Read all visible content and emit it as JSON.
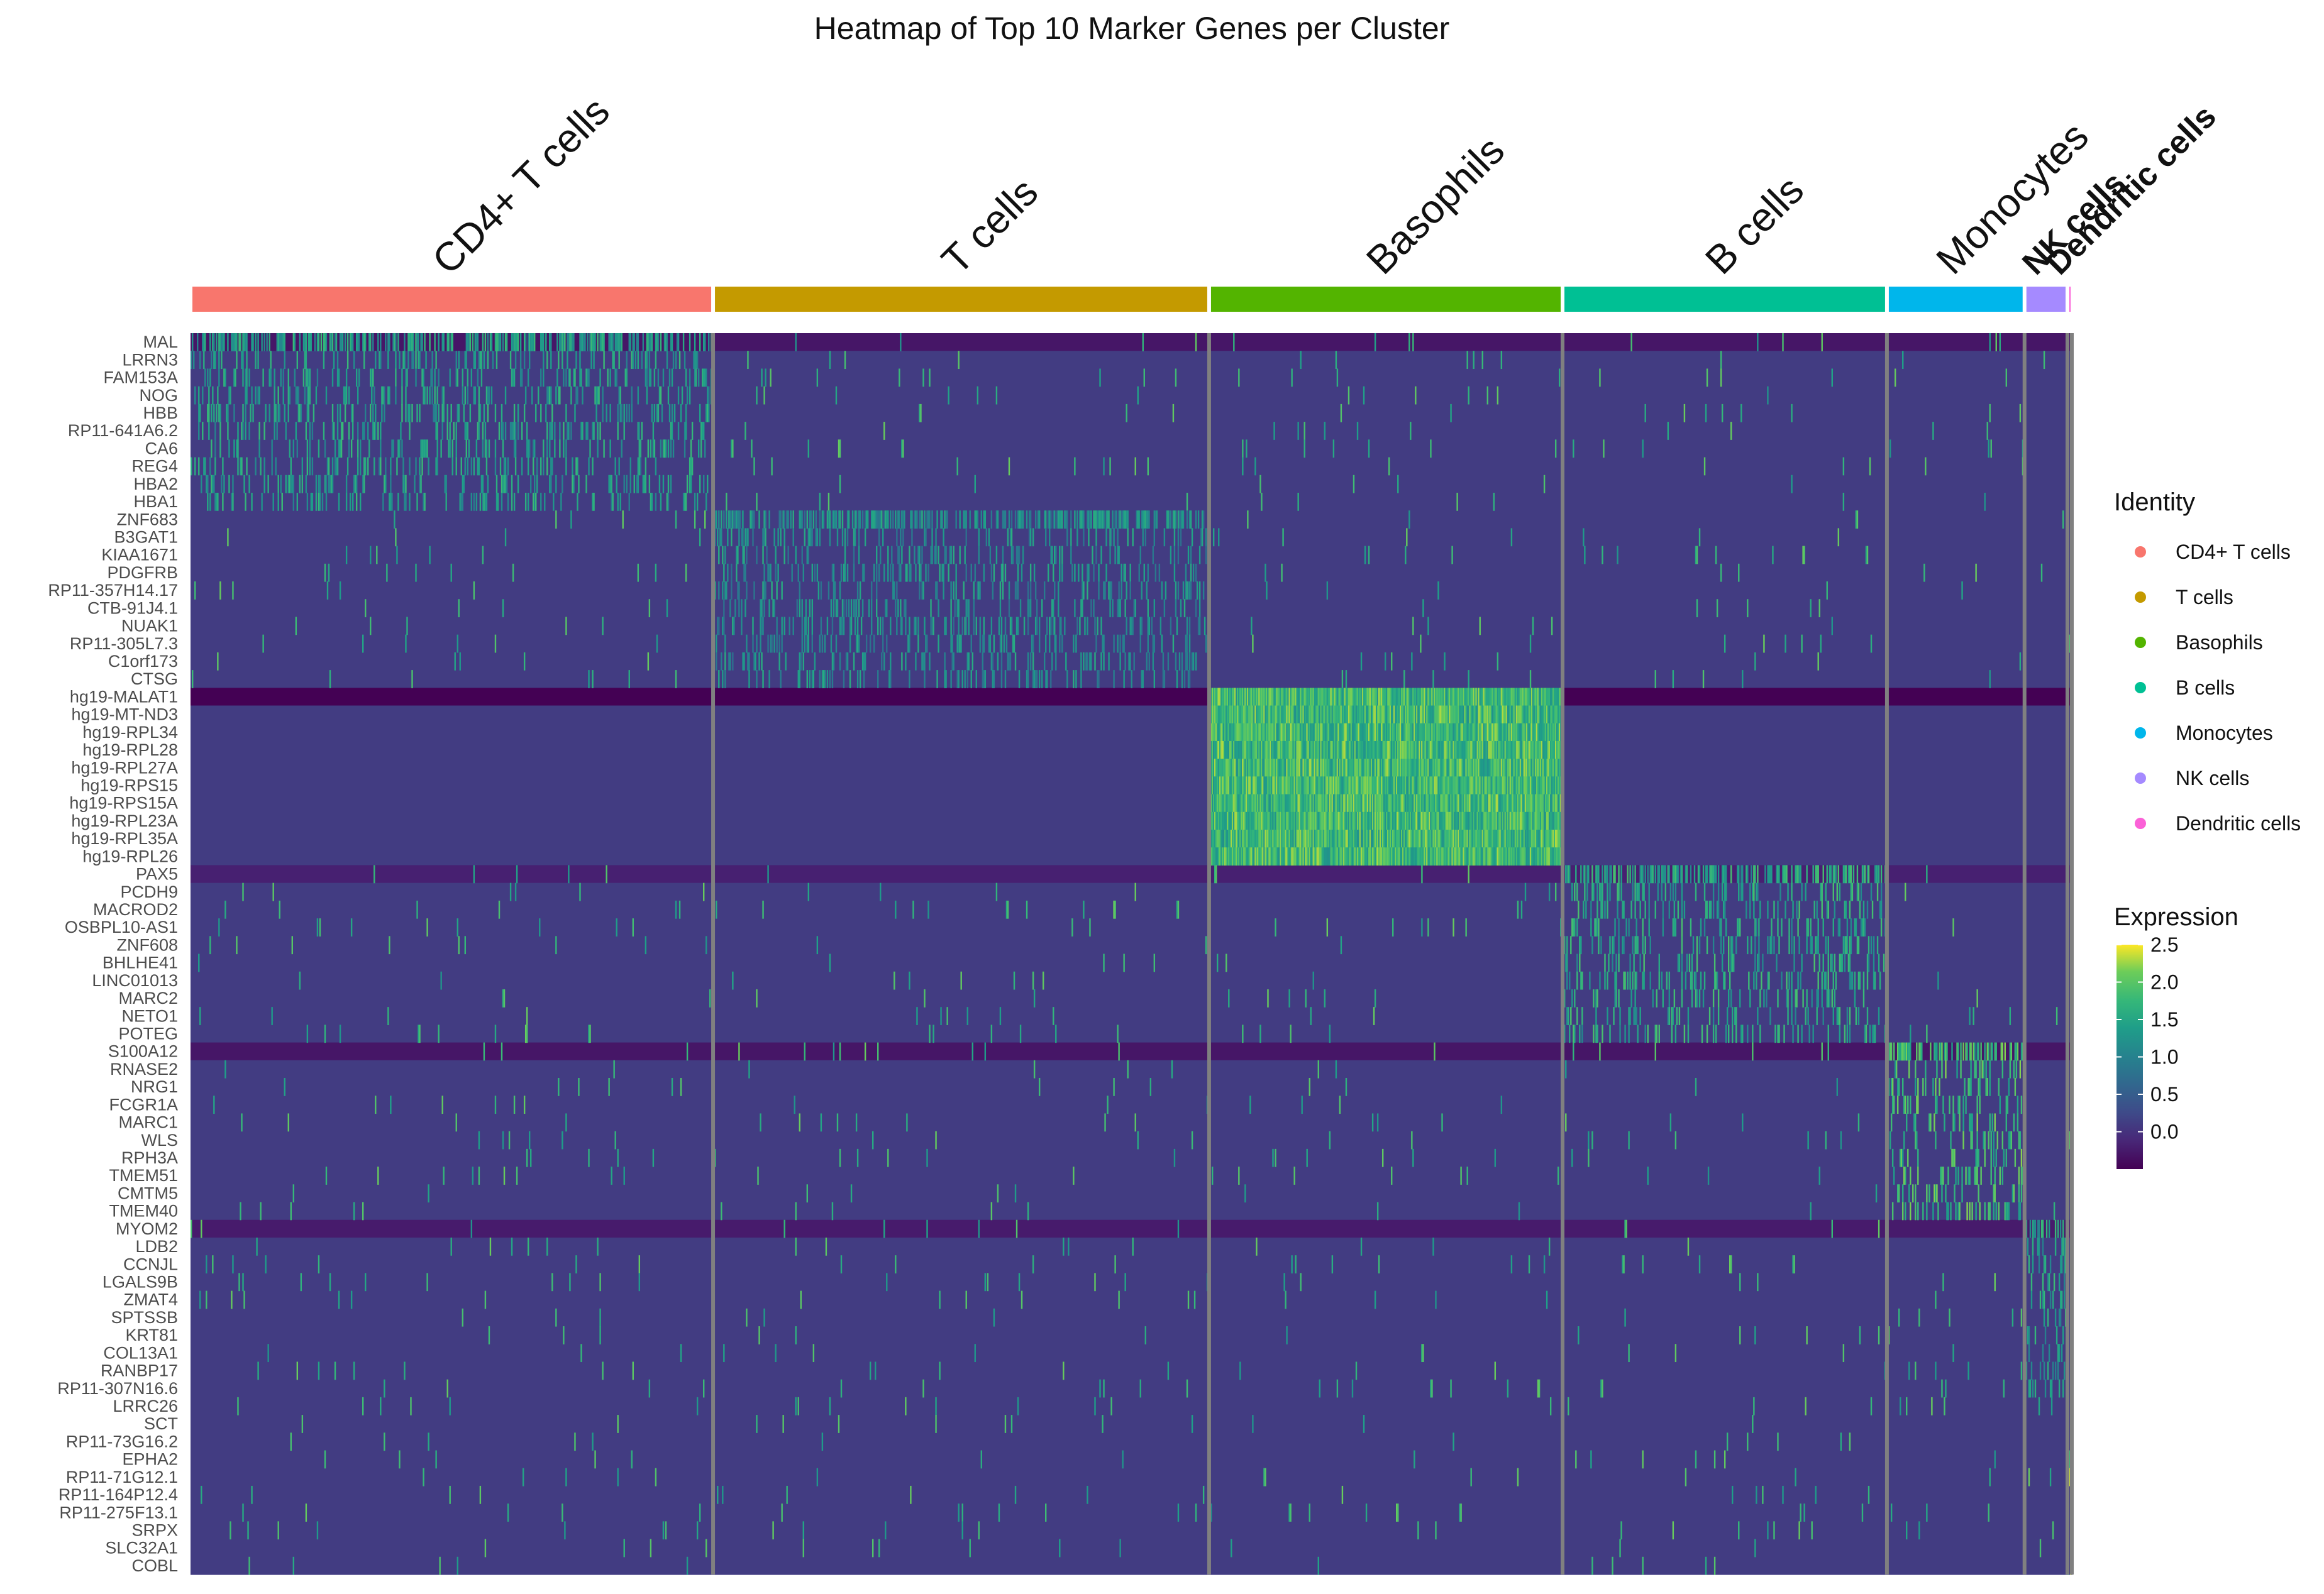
{
  "chart_data": {
    "type": "heatmap",
    "title": "Heatmap of Top 10 Marker Genes per Cluster",
    "clusters": [
      {
        "name": "CD4+ T cells",
        "cells": 414,
        "color": "#F8766D",
        "markers": [
          "MAL",
          "LRRN3",
          "FAM153A",
          "NOG",
          "HBB",
          "RP11-641A6.2",
          "CA6",
          "REG4",
          "HBA2",
          "HBA1"
        ]
      },
      {
        "name": "T cells",
        "cells": 393,
        "color": "#C49A00",
        "markers": [
          "ZNF683",
          "B3GAT1",
          "KIAA1671",
          "PDGFRB",
          "RP11-357H14.17",
          "CTB-91J4.1",
          "NUAK1",
          "RP11-305L7.3",
          "C1orf173",
          "CTSG"
        ]
      },
      {
        "name": "Basophils",
        "cells": 280,
        "color": "#53B400",
        "markers": [
          "hg19-MALAT1",
          "hg19-MT-ND3",
          "hg19-RPL34",
          "hg19-RPL28",
          "hg19-RPL27A",
          "hg19-RPS15",
          "hg19-RPS15A",
          "hg19-RPL23A",
          "hg19-RPL35A",
          "hg19-RPL26"
        ]
      },
      {
        "name": "B cells",
        "cells": 257,
        "color": "#00C094",
        "markers": [
          "PAX5",
          "PCDH9",
          "MACROD2",
          "OSBPL10-AS1",
          "ZNF608",
          "BHLHE41",
          "LINC01013",
          "MARC2",
          "NETO1",
          "POTEG"
        ]
      },
      {
        "name": "Monocytes",
        "cells": 109,
        "color": "#00B6EB",
        "markers": [
          "S100A12",
          "RNASE2",
          "NRG1",
          "FCGR1A",
          "MARC1",
          "WLS",
          "RPH3A",
          "TMEM51",
          "CMTM5",
          "TMEM40"
        ]
      },
      {
        "name": "NK cells",
        "cells": 34,
        "color": "#A58AFF",
        "markers": [
          "MYOM2",
          "LDB2",
          "CCNJL",
          "LGALS9B",
          "ZMAT4",
          "SPTSSB",
          "KRT81",
          "COL13A1",
          "RANBP17",
          "RP11-307N16.6"
        ]
      },
      {
        "name": "Dendritic cells",
        "cells": 4,
        "color": "#FB61D7",
        "markers": [
          "LRRC26",
          "SCT",
          "RP11-73G16.2",
          "EPHA2",
          "RP11-71G12.1",
          "RP11-164P12.4",
          "RP11-275F13.1",
          "SRPX",
          "SLC32A1",
          "COBL"
        ]
      }
    ],
    "genes": [
      "MAL",
      "LRRN3",
      "FAM153A",
      "NOG",
      "HBB",
      "RP11-641A6.2",
      "CA6",
      "REG4",
      "HBA2",
      "HBA1",
      "ZNF683",
      "B3GAT1",
      "KIAA1671",
      "PDGFRB",
      "RP11-357H14.17",
      "CTB-91J4.1",
      "NUAK1",
      "RP11-305L7.3",
      "C1orf173",
      "CTSG",
      "hg19-MALAT1",
      "hg19-MT-ND3",
      "hg19-RPL34",
      "hg19-RPL28",
      "hg19-RPL27A",
      "hg19-RPS15",
      "hg19-RPS15A",
      "hg19-RPL23A",
      "hg19-RPL35A",
      "hg19-RPL26",
      "PAX5",
      "PCDH9",
      "MACROD2",
      "OSBPL10-AS1",
      "ZNF608",
      "BHLHE41",
      "LINC01013",
      "MARC2",
      "NETO1",
      "POTEG",
      "S100A12",
      "RNASE2",
      "NRG1",
      "FCGR1A",
      "MARC1",
      "WLS",
      "RPH3A",
      "TMEM51",
      "CMTM5",
      "TMEM40",
      "MYOM2",
      "LDB2",
      "CCNJL",
      "LGALS9B",
      "ZMAT4",
      "SPTSSB",
      "KRT81",
      "COL13A1",
      "RANBP17",
      "RP11-307N16.6",
      "LRRC26",
      "SCT",
      "RP11-73G16.2",
      "EPHA2",
      "RP11-71G12.1",
      "RP11-164P12.4",
      "RP11-275F13.1",
      "SRPX",
      "SLC32A1",
      "COBL"
    ],
    "row_baseline": {
      "MAL": -0.3,
      "hg19-MALAT1": -0.5,
      "PAX5": -0.2,
      "S100A12": -0.3,
      "MYOM2": -0.25,
      "default": 0.1
    },
    "within_cluster_expression": {
      "CD4+ T cells": 1.8,
      "T cells": 1.6,
      "Basophils": 2.3,
      "B cells": 1.9,
      "Monocytes": 2.2,
      "NK cells": 1.8,
      "Dendritic cells": 2.4
    },
    "color_scale": {
      "palette": "viridis",
      "min": -0.5,
      "max": 2.5,
      "ticks": [
        2.5,
        2.0,
        1.5,
        1.0,
        0.5,
        0.0
      ]
    },
    "legend": {
      "identity_title": "Identity",
      "expression_title": "Expression",
      "expression_tick_labels": [
        "2.5",
        "2.0",
        "1.5",
        "1.0",
        "0.5",
        "0.0"
      ],
      "placement": "right"
    }
  }
}
